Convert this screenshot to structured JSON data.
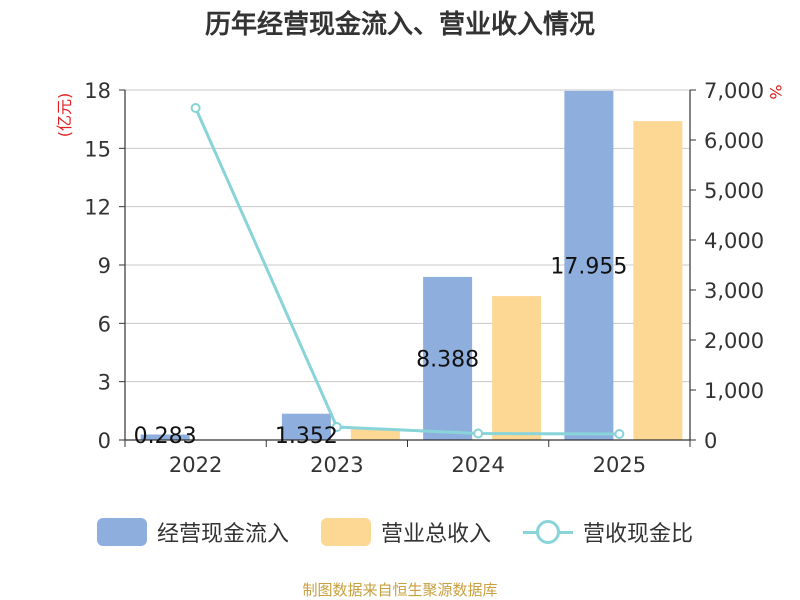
{
  "title": "历年经营现金流入、营业收入情况",
  "footer": "制图数据来自恒生聚源数据库",
  "chart_data": {
    "type": "bar",
    "categories": [
      "2022",
      "2023",
      "2024",
      "2025"
    ],
    "y_left": {
      "label": "(亿元)",
      "ticks": [
        "0",
        "3",
        "6",
        "9",
        "12",
        "15",
        "18"
      ],
      "range": [
        0,
        18
      ]
    },
    "y_right": {
      "label": "%",
      "ticks": [
        "0",
        "1,000",
        "2,000",
        "3,000",
        "4,000",
        "5,000",
        "6,000",
        "7,000"
      ],
      "range": [
        0,
        7000
      ]
    },
    "grid": true,
    "legend_position": "bottom",
    "series": [
      {
        "name": "经营现金流入",
        "kind": "bar",
        "axis": "left",
        "color": "#8eaedd",
        "values": [
          0.283,
          1.352,
          8.388,
          17.955
        ],
        "labels": [
          "0.283",
          "1.352",
          "8.388",
          "17.955"
        ]
      },
      {
        "name": "营业总收入",
        "kind": "bar",
        "axis": "left",
        "color": "#fdd794",
        "values": [
          0.0,
          0.6,
          7.4,
          16.4
        ]
      },
      {
        "name": "营收现金比",
        "kind": "line",
        "axis": "right",
        "color": "#88d4d8",
        "values": [
          6640,
          260,
          130,
          120
        ]
      }
    ]
  }
}
